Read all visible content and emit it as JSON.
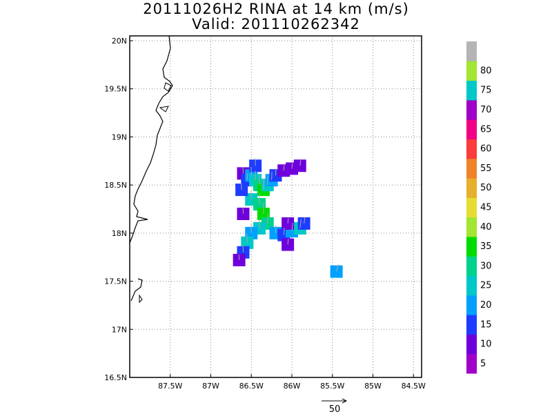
{
  "title": {
    "line1": "20111026H2 RINA at 14 km (m/s)",
    "line2": "Valid: 201110262342"
  },
  "chart_data": {
    "type": "heatmap",
    "xlim": [
      -88.0,
      -84.4
    ],
    "ylim": [
      16.5,
      20.05
    ],
    "x_ticks": [
      -87.5,
      -87.0,
      -86.5,
      -86.0,
      -85.5,
      -85.0,
      -84.5
    ],
    "x_tick_labels": [
      "87.5W",
      "87W",
      "86.5W",
      "86W",
      "85.5W",
      "85W",
      "84.5W"
    ],
    "y_ticks": [
      16.5,
      17.0,
      17.5,
      18.0,
      18.5,
      19.0,
      19.5,
      20.0
    ],
    "y_tick_labels": [
      "16.5N",
      "17N",
      "17.5N",
      "18N",
      "18.5N",
      "19N",
      "19.5N",
      "20N"
    ],
    "grid": true,
    "colorbar": {
      "labels": [
        "5",
        "10",
        "15",
        "20",
        "25",
        "30",
        "35",
        "40",
        "45",
        "50",
        "55",
        "60",
        "65",
        "70",
        "75",
        "80"
      ],
      "colors": [
        "#a000c8",
        "#6e00dc",
        "#1e3cff",
        "#00a0ff",
        "#00c8c8",
        "#00d28c",
        "#00dc00",
        "#a0e632",
        "#e6dc32",
        "#e6af2d",
        "#f08228",
        "#fa3c3c",
        "#f00082",
        "#a000c8",
        "#00c8c8",
        "#a0e632",
        "#b4b4b4"
      ]
    },
    "speed_cells": [
      {
        "lon": -86.6,
        "lat": 18.62,
        "v": 8
      },
      {
        "lon": -86.55,
        "lat": 18.55,
        "v": 12
      },
      {
        "lon": -86.5,
        "lat": 18.6,
        "v": 18
      },
      {
        "lon": -86.45,
        "lat": 18.55,
        "v": 22
      },
      {
        "lon": -86.4,
        "lat": 18.5,
        "v": 26
      },
      {
        "lon": -86.35,
        "lat": 18.45,
        "v": 30
      },
      {
        "lon": -86.3,
        "lat": 18.5,
        "v": 24
      },
      {
        "lon": -86.25,
        "lat": 18.55,
        "v": 18
      },
      {
        "lon": -86.2,
        "lat": 18.6,
        "v": 12
      },
      {
        "lon": -86.45,
        "lat": 18.7,
        "v": 14
      },
      {
        "lon": -86.1,
        "lat": 18.65,
        "v": 6
      },
      {
        "lon": -86.0,
        "lat": 18.67,
        "v": 7
      },
      {
        "lon": -85.9,
        "lat": 18.7,
        "v": 8
      },
      {
        "lon": -86.5,
        "lat": 18.35,
        "v": 20
      },
      {
        "lon": -86.4,
        "lat": 18.3,
        "v": 28
      },
      {
        "lon": -86.35,
        "lat": 18.2,
        "v": 31
      },
      {
        "lon": -86.3,
        "lat": 18.1,
        "v": 26
      },
      {
        "lon": -86.4,
        "lat": 18.05,
        "v": 22
      },
      {
        "lon": -86.5,
        "lat": 18.0,
        "v": 18
      },
      {
        "lon": -86.55,
        "lat": 17.9,
        "v": 20
      },
      {
        "lon": -86.6,
        "lat": 17.8,
        "v": 12
      },
      {
        "lon": -86.65,
        "lat": 17.72,
        "v": 6
      },
      {
        "lon": -86.2,
        "lat": 18.0,
        "v": 16
      },
      {
        "lon": -86.1,
        "lat": 17.98,
        "v": 14
      },
      {
        "lon": -86.0,
        "lat": 18.02,
        "v": 18
      },
      {
        "lon": -85.9,
        "lat": 18.05,
        "v": 22
      },
      {
        "lon": -85.85,
        "lat": 18.1,
        "v": 12
      },
      {
        "lon": -86.05,
        "lat": 18.1,
        "v": 7
      },
      {
        "lon": -86.05,
        "lat": 17.88,
        "v": 8
      },
      {
        "lon": -86.6,
        "lat": 18.2,
        "v": 8
      },
      {
        "lon": -86.62,
        "lat": 18.45,
        "v": 10
      },
      {
        "lon": -85.45,
        "lat": 17.6,
        "v": 18
      }
    ],
    "vector_scale": {
      "value": "50",
      "units": "m/s"
    }
  }
}
